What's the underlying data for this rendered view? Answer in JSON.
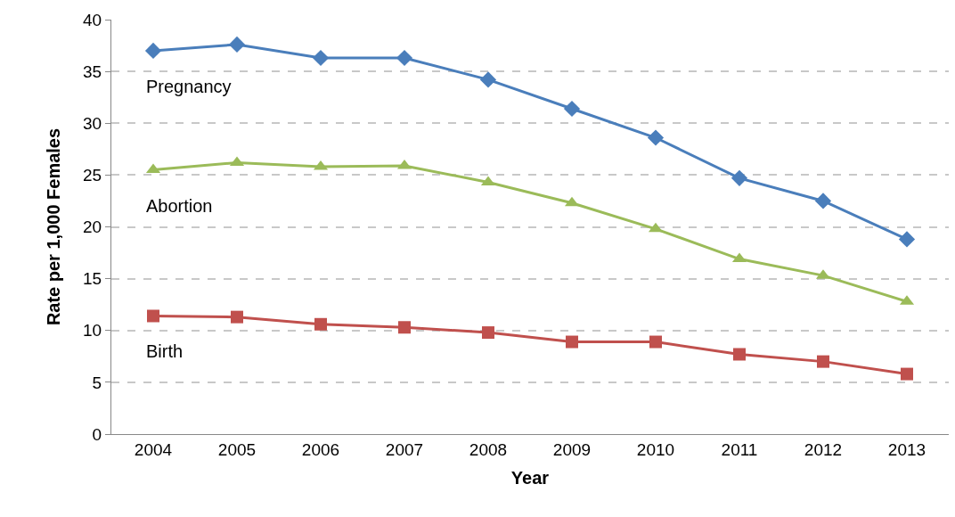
{
  "chart_data": {
    "type": "line",
    "xlabel": "Year",
    "ylabel": "Rate per 1,000 Females",
    "categories": [
      "2004",
      "2005",
      "2006",
      "2007",
      "2008",
      "2009",
      "2010",
      "2011",
      "2012",
      "2013"
    ],
    "series": [
      {
        "name": "Pregnancy",
        "color": "#4a7ebb",
        "marker": "diamond",
        "values": [
          37.0,
          37.6,
          36.3,
          36.3,
          34.2,
          31.4,
          28.6,
          24.7,
          22.5,
          18.8
        ]
      },
      {
        "name": "Abortion",
        "color": "#9bbb59",
        "marker": "triangle",
        "values": [
          25.5,
          26.2,
          25.8,
          25.9,
          24.3,
          22.3,
          19.8,
          16.9,
          15.3,
          12.8
        ]
      },
      {
        "name": "Birth",
        "color": "#c0504d",
        "marker": "square",
        "values": [
          11.4,
          11.3,
          10.6,
          10.3,
          9.8,
          8.9,
          8.9,
          7.7,
          7.0,
          5.8
        ]
      }
    ],
    "ylim": [
      0,
      40
    ],
    "yticks": [
      0,
      5,
      10,
      15,
      20,
      25,
      30,
      35,
      40
    ],
    "grid": "y",
    "legend": false,
    "line_style": "solid"
  }
}
